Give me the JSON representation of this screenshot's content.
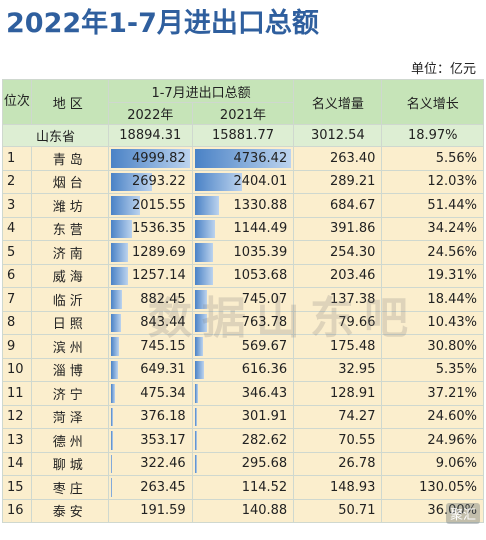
{
  "title": "2022年1-7月进出口总额",
  "unit": "单位：亿元",
  "headers": {
    "rank": "位次",
    "region": "地区",
    "group": "1-7月进出口总额",
    "y2022": "2022年",
    "y2021": "2021年",
    "increase": "名义增量",
    "growth": "名义增长"
  },
  "total": {
    "name": "山东省",
    "y2022": "18894.31",
    "y2021": "15881.77",
    "increase": "3012.54",
    "growth": "18.97%"
  },
  "rows": [
    {
      "rank": "1",
      "name": "青岛",
      "y2022": "4999.82",
      "y2021": "4736.42",
      "increase": "263.40",
      "growth": "5.56%"
    },
    {
      "rank": "2",
      "name": "烟台",
      "y2022": "2693.22",
      "y2021": "2404.01",
      "increase": "289.21",
      "growth": "12.03%"
    },
    {
      "rank": "3",
      "name": "潍坊",
      "y2022": "2015.55",
      "y2021": "1330.88",
      "increase": "684.67",
      "growth": "51.44%"
    },
    {
      "rank": "4",
      "name": "东营",
      "y2022": "1536.35",
      "y2021": "1144.49",
      "increase": "391.86",
      "growth": "34.24%"
    },
    {
      "rank": "5",
      "name": "济南",
      "y2022": "1289.69",
      "y2021": "1035.39",
      "increase": "254.30",
      "growth": "24.56%"
    },
    {
      "rank": "6",
      "name": "威海",
      "y2022": "1257.14",
      "y2021": "1053.68",
      "increase": "203.46",
      "growth": "19.31%"
    },
    {
      "rank": "7",
      "name": "临沂",
      "y2022": "882.45",
      "y2021": "745.07",
      "increase": "137.38",
      "growth": "18.44%"
    },
    {
      "rank": "8",
      "name": "日照",
      "y2022": "843.44",
      "y2021": "763.78",
      "increase": "79.66",
      "growth": "10.43%"
    },
    {
      "rank": "9",
      "name": "滨州",
      "y2022": "745.15",
      "y2021": "569.67",
      "increase": "175.48",
      "growth": "30.80%"
    },
    {
      "rank": "10",
      "name": "淄博",
      "y2022": "649.31",
      "y2021": "616.36",
      "increase": "32.95",
      "growth": "5.35%"
    },
    {
      "rank": "11",
      "name": "济宁",
      "y2022": "475.34",
      "y2021": "346.43",
      "increase": "128.91",
      "growth": "37.21%"
    },
    {
      "rank": "12",
      "name": "菏泽",
      "y2022": "376.18",
      "y2021": "301.91",
      "increase": "74.27",
      "growth": "24.60%"
    },
    {
      "rank": "13",
      "name": "德州",
      "y2022": "353.17",
      "y2021": "282.62",
      "increase": "70.55",
      "growth": "24.96%"
    },
    {
      "rank": "14",
      "name": "聊城",
      "y2022": "322.46",
      "y2021": "295.68",
      "increase": "26.78",
      "growth": "9.06%"
    },
    {
      "rank": "15",
      "name": "枣庄",
      "y2022": "263.45",
      "y2021": "114.52",
      "increase": "148.93",
      "growth": "130.05%"
    },
    {
      "rank": "16",
      "name": "泰安",
      "y2022": "191.59",
      "y2021": "140.88",
      "increase": "50.71",
      "growth": "36.00%"
    }
  ],
  "watermark": "数据山东吧",
  "logo": "聚汇"
}
